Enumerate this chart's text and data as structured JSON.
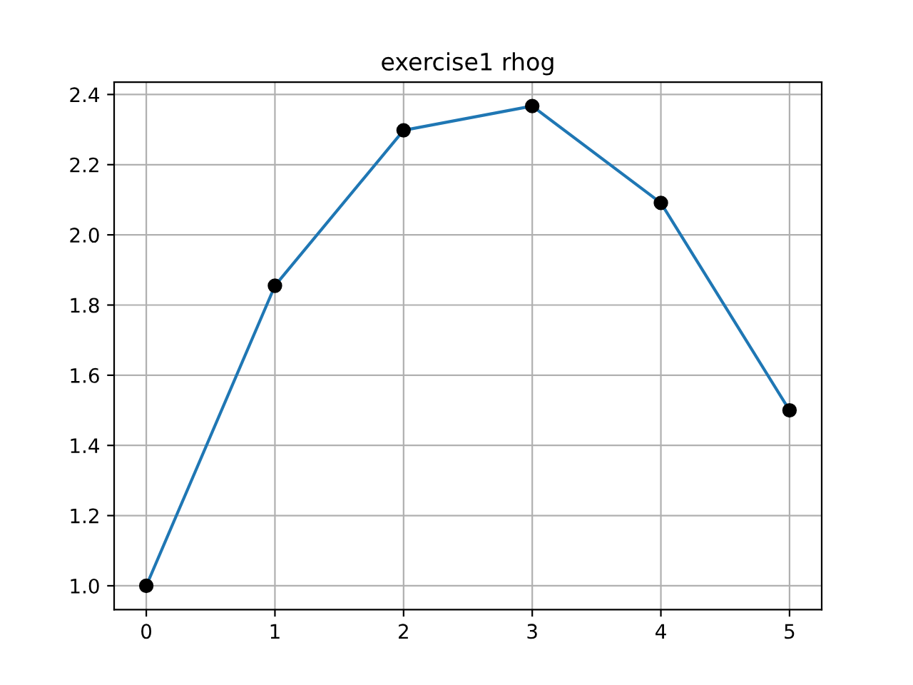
{
  "chart_data": {
    "type": "line",
    "title": "exercise1 rhog",
    "x": [
      0,
      1,
      2,
      3,
      4,
      5
    ],
    "series": [
      {
        "color": "#1f77b4",
        "marker": "none",
        "values": [
          1.0,
          1.855,
          2.298,
          2.367,
          2.091,
          1.5
        ]
      },
      {
        "type": "scatter",
        "color": "#000000",
        "marker": "circle",
        "values": [
          1.0,
          1.855,
          2.298,
          2.367,
          2.091,
          1.5
        ]
      }
    ],
    "xlim": [
      -0.25,
      5.25
    ],
    "xticks": [
      0,
      1,
      2,
      3,
      4,
      5
    ],
    "ylim": [
      0.932,
      2.435
    ],
    "yticks": [
      {
        "value": 1.0,
        "label": "1.0"
      },
      {
        "value": 1.2,
        "label": "1.2"
      },
      {
        "value": 1.4,
        "label": "1.4"
      },
      {
        "value": 1.6,
        "label": "1.6"
      },
      {
        "value": 1.8,
        "label": "1.8"
      },
      {
        "value": 2.0,
        "label": "2.0"
      },
      {
        "value": 2.2,
        "label": "2.2"
      },
      {
        "value": 2.4,
        "label": "2.4"
      }
    ],
    "grid": true,
    "legend": false
  }
}
